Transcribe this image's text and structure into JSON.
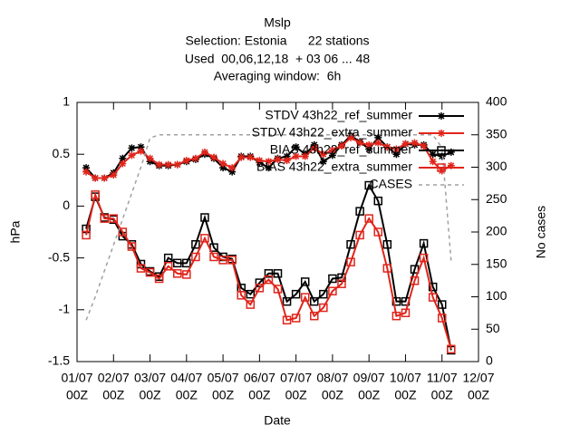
{
  "chart_data": {
    "type": "line",
    "title": [
      "Mslp",
      "Selection: Estonia      22 stations",
      "Used  00,06,12,18  + 03 06 ... 48",
      "Averaging window:  6h"
    ],
    "xlabel": "Date",
    "ylabel": "hPa",
    "y2label": "No cases",
    "x": [
      0.25,
      0.5,
      0.75,
      1,
      1.25,
      1.5,
      1.75,
      2,
      2.25,
      2.5,
      2.75,
      3,
      3.25,
      3.5,
      3.75,
      4,
      4.25,
      4.5,
      4.75,
      5,
      5.25,
      5.5,
      5.75,
      6,
      6.25,
      6.5,
      6.75,
      7,
      7.25,
      7.5,
      7.75,
      8,
      8.25,
      8.5,
      8.75,
      9,
      9.25,
      9.5,
      9.75,
      10,
      10.25
    ],
    "xlim": [
      0,
      11
    ],
    "xticks": [
      {
        "value": 0,
        "label": "01/07",
        "sublabel": "00Z"
      },
      {
        "value": 1,
        "label": "02/07",
        "sublabel": "00Z"
      },
      {
        "value": 2,
        "label": "03/07",
        "sublabel": "00Z"
      },
      {
        "value": 3,
        "label": "04/07",
        "sublabel": "00Z"
      },
      {
        "value": 4,
        "label": "05/07",
        "sublabel": "00Z"
      },
      {
        "value": 5,
        "label": "06/07",
        "sublabel": "00Z"
      },
      {
        "value": 6,
        "label": "07/07",
        "sublabel": "00Z"
      },
      {
        "value": 7,
        "label": "08/07",
        "sublabel": "00Z"
      },
      {
        "value": 8,
        "label": "09/07",
        "sublabel": "00Z"
      },
      {
        "value": 9,
        "label": "10/07",
        "sublabel": "00Z"
      },
      {
        "value": 10,
        "label": "11/07",
        "sublabel": "00Z"
      },
      {
        "value": 11,
        "label": "12/07",
        "sublabel": "00Z"
      }
    ],
    "ylim": [
      -1.5,
      1
    ],
    "yticks": [
      -1.5,
      -1,
      -0.5,
      0,
      0.5,
      1
    ],
    "y2lim": [
      0,
      400
    ],
    "y2ticks": [
      0,
      50,
      100,
      150,
      200,
      250,
      300,
      350,
      400
    ],
    "legend": "top-right",
    "grid": false,
    "series": [
      {
        "name": "STDV 43h22_ref_summer",
        "color": "#000000",
        "marker": "asterisk",
        "dash": false,
        "values": [
          0.37,
          0.27,
          0.27,
          0.32,
          0.46,
          0.56,
          0.57,
          0.43,
          0.39,
          0.39,
          0.4,
          0.43,
          0.45,
          0.5,
          0.46,
          0.37,
          0.33,
          0.48,
          0.48,
          0.42,
          0.37,
          0.46,
          0.48,
          0.57,
          0.5,
          0.59,
          0.43,
          0.49,
          0.59,
          0.68,
          0.62,
          0.55,
          0.66,
          0.57,
          0.5,
          0.6,
          0.59,
          0.59,
          0.5,
          0.48,
          0.52
        ]
      },
      {
        "name": "STDV 43h22_extra_summer",
        "color": "#e0251b",
        "marker": "asterisk",
        "dash": false,
        "values": [
          0.33,
          0.27,
          0.27,
          0.3,
          0.41,
          0.49,
          0.53,
          0.46,
          0.4,
          0.4,
          0.4,
          0.44,
          0.46,
          0.52,
          0.47,
          0.41,
          0.37,
          0.47,
          0.47,
          0.44,
          0.43,
          0.45,
          0.44,
          0.48,
          0.48,
          0.56,
          0.5,
          0.54,
          0.58,
          0.66,
          0.61,
          0.59,
          0.61,
          0.57,
          0.55,
          0.6,
          0.61,
          0.58,
          0.43,
          0.34,
          0.39
        ]
      },
      {
        "name": "BIAS 43h22_ref_summer",
        "color": "#000000",
        "marker": "square",
        "dash": false,
        "values": [
          -0.22,
          0.09,
          -0.11,
          -0.13,
          -0.29,
          -0.37,
          -0.56,
          -0.63,
          -0.68,
          -0.5,
          -0.55,
          -0.55,
          -0.37,
          -0.11,
          -0.4,
          -0.49,
          -0.51,
          -0.79,
          -0.85,
          -0.74,
          -0.65,
          -0.65,
          -0.92,
          -0.85,
          -0.73,
          -0.92,
          -0.85,
          -0.7,
          -0.69,
          -0.37,
          -0.05,
          0.2,
          0.05,
          -0.37,
          -0.92,
          -0.92,
          -0.61,
          -0.36,
          -0.78,
          -0.95,
          -1.39
        ]
      },
      {
        "name": "BIAS 43h22_extra_summer",
        "color": "#e0251b",
        "marker": "square",
        "dash": false,
        "values": [
          -0.28,
          0.11,
          -0.12,
          -0.12,
          -0.25,
          -0.39,
          -0.6,
          -0.64,
          -0.7,
          -0.58,
          -0.65,
          -0.66,
          -0.49,
          -0.31,
          -0.49,
          -0.52,
          -0.52,
          -0.86,
          -0.95,
          -0.79,
          -0.71,
          -0.8,
          -1.1,
          -1.08,
          -0.88,
          -1.06,
          -0.98,
          -0.82,
          -0.75,
          -0.54,
          -0.28,
          -0.12,
          -0.25,
          -0.6,
          -1.06,
          -1.03,
          -0.72,
          -0.5,
          -0.88,
          -1.08,
          -1.38
        ]
      },
      {
        "name": "CASES",
        "color": "#a0a0a0",
        "marker": "none",
        "dash": true,
        "axis": "y2",
        "values": [
          64,
          100,
          140,
          180,
          220,
          260,
          300,
          345,
          350,
          350,
          350,
          350,
          350,
          350,
          350,
          350,
          350,
          350,
          350,
          350,
          350,
          350,
          350,
          350,
          350,
          350,
          350,
          350,
          350,
          350,
          350,
          350,
          350,
          350,
          350,
          350,
          350,
          350,
          350,
          330,
          155
        ]
      }
    ]
  }
}
